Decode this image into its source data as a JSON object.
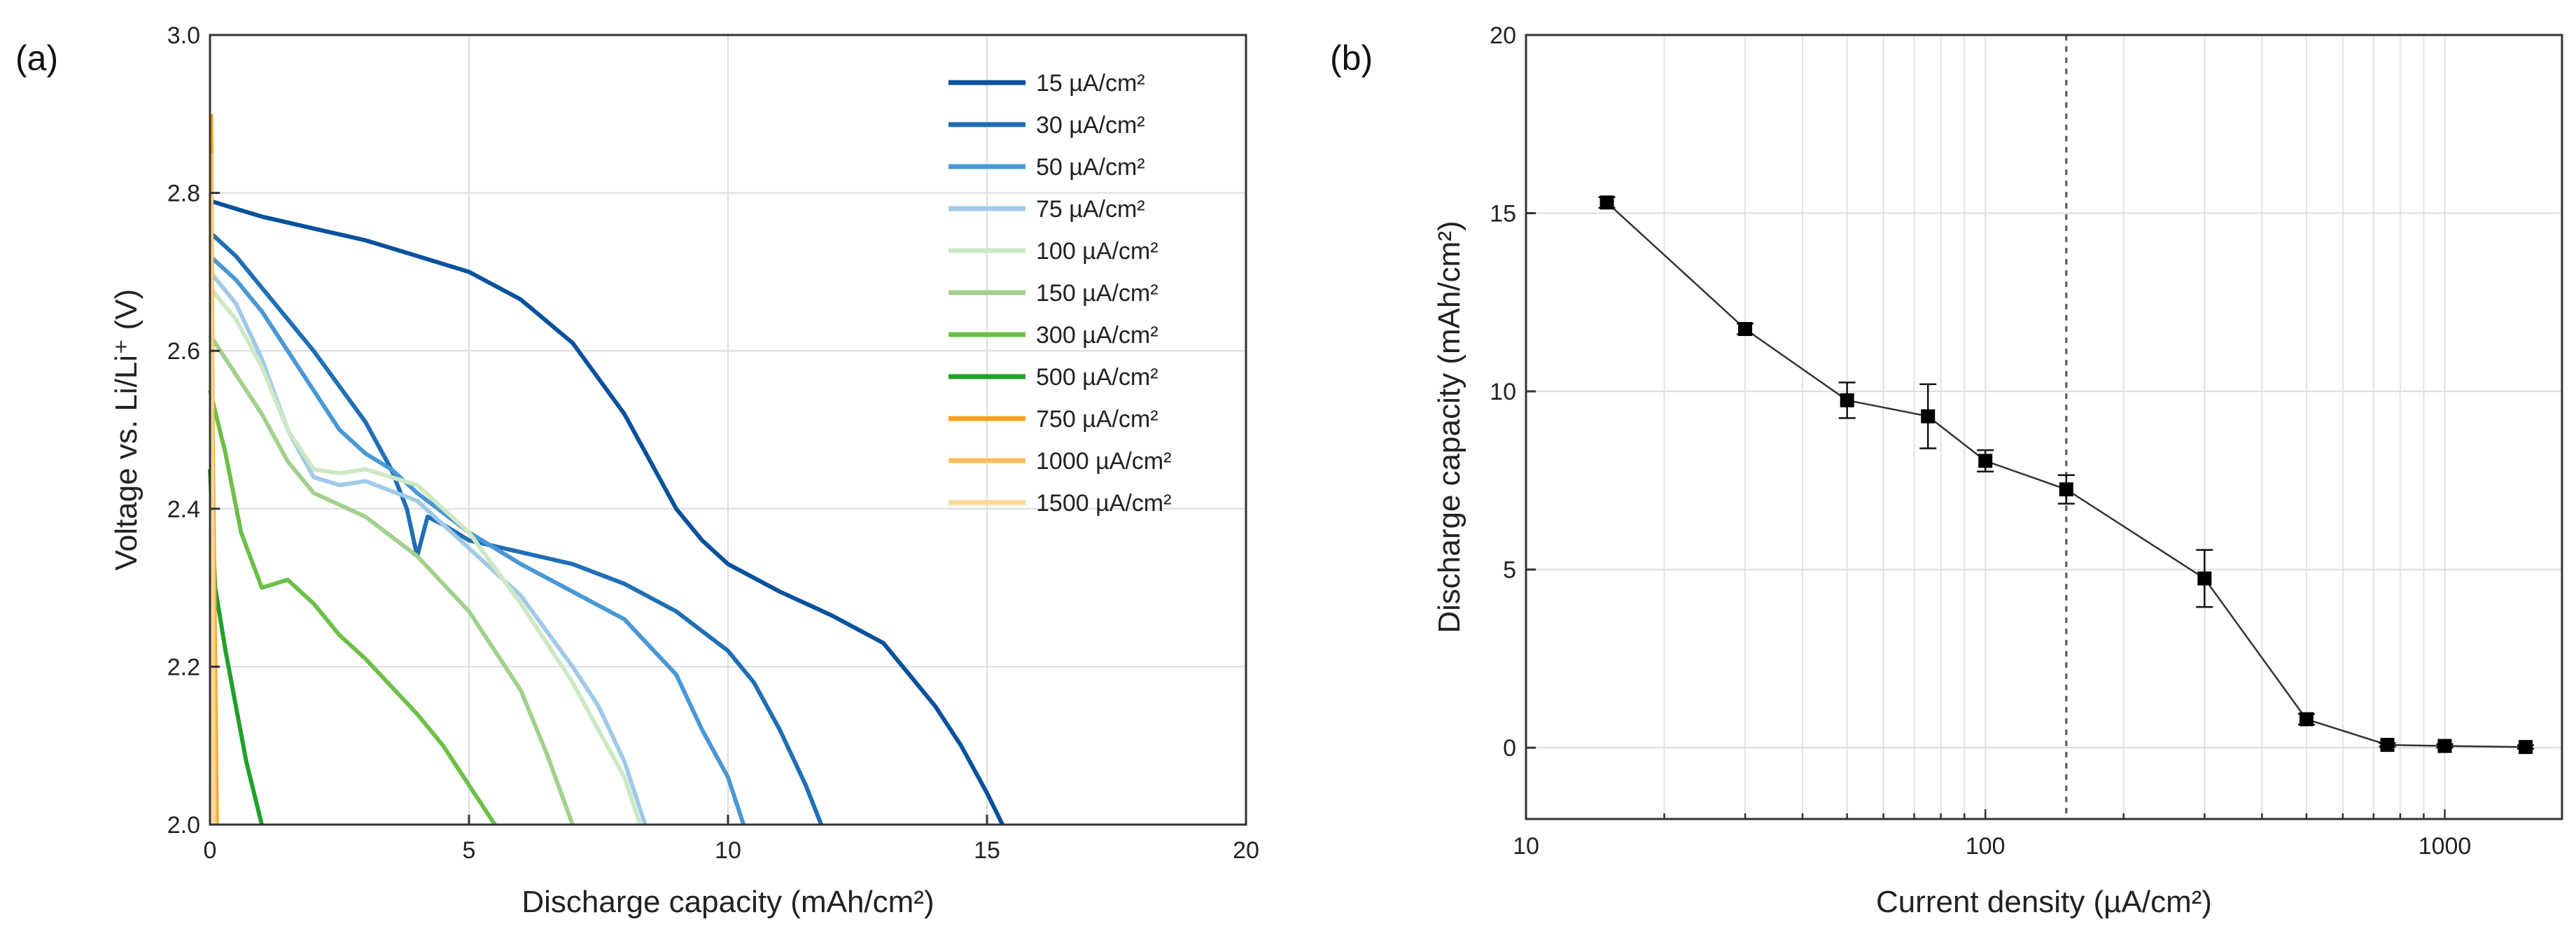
{
  "chart_data": [
    {
      "panel": "(a)",
      "type": "line",
      "xlabel": "Discharge capacity (mAh/cm²)",
      "ylabel": "Voltage vs. Li/Li⁺ (V)",
      "xlim": [
        0,
        20
      ],
      "ylim": [
        2.0,
        3.0
      ],
      "xticks": [
        0,
        5,
        10,
        15,
        20
      ],
      "yticks": [
        2.0,
        2.2,
        2.4,
        2.6,
        2.8,
        3.0
      ],
      "grid": true,
      "legend_position": "top-right",
      "series": [
        {
          "name": "15 µA/cm²",
          "color": "#08519c",
          "x": [
            0,
            0.5,
            1,
            2,
            3,
            4,
            5,
            6,
            7,
            8,
            8.5,
            9,
            9.5,
            10,
            11,
            12,
            13,
            13.5,
            14,
            14.5,
            15,
            15.3
          ],
          "y": [
            2.79,
            2.78,
            2.77,
            2.755,
            2.74,
            2.72,
            2.7,
            2.665,
            2.61,
            2.52,
            2.46,
            2.4,
            2.36,
            2.33,
            2.295,
            2.265,
            2.23,
            2.19,
            2.15,
            2.1,
            2.04,
            2.0
          ]
        },
        {
          "name": "30 µA/cm²",
          "color": "#1f6fb4",
          "x": [
            0,
            0.5,
            1,
            2,
            3,
            3.5,
            3.8,
            4,
            4.2,
            4.5,
            5,
            6,
            7,
            8,
            9,
            10,
            10.5,
            11,
            11.5,
            11.8
          ],
          "y": [
            2.75,
            2.72,
            2.68,
            2.6,
            2.51,
            2.45,
            2.4,
            2.34,
            2.39,
            2.38,
            2.36,
            2.345,
            2.33,
            2.305,
            2.27,
            2.22,
            2.18,
            2.12,
            2.05,
            2.0
          ]
        },
        {
          "name": "50 µA/cm²",
          "color": "#4a98d4",
          "x": [
            0,
            0.5,
            1,
            1.5,
            2,
            2.5,
            3,
            3.5,
            4,
            5,
            6,
            7,
            8,
            9,
            9.5,
            10,
            10.3
          ],
          "y": [
            2.72,
            2.69,
            2.65,
            2.6,
            2.55,
            2.5,
            2.47,
            2.45,
            2.42,
            2.37,
            2.33,
            2.295,
            2.26,
            2.19,
            2.12,
            2.06,
            2.0
          ]
        },
        {
          "name": "75 µA/cm²",
          "color": "#9fcae8",
          "x": [
            0,
            0.5,
            1,
            1.5,
            2,
            2.5,
            3,
            4,
            5,
            6,
            7,
            7.5,
            8,
            8.4
          ],
          "y": [
            2.7,
            2.66,
            2.59,
            2.5,
            2.44,
            2.43,
            2.435,
            2.41,
            2.35,
            2.29,
            2.2,
            2.15,
            2.08,
            2.0
          ]
        },
        {
          "name": "100 µA/cm²",
          "color": "#cde8c3",
          "x": [
            0,
            0.5,
            1,
            1.5,
            2,
            2.5,
            3,
            4,
            5,
            6,
            7,
            8,
            8.3
          ],
          "y": [
            2.68,
            2.64,
            2.58,
            2.5,
            2.45,
            2.445,
            2.45,
            2.43,
            2.37,
            2.28,
            2.18,
            2.06,
            2.0
          ]
        },
        {
          "name": "150 µA/cm²",
          "color": "#a3d08e",
          "x": [
            0,
            0.5,
            1,
            1.5,
            2,
            3,
            4,
            5,
            6,
            6.5,
            7
          ],
          "y": [
            2.62,
            2.57,
            2.52,
            2.46,
            2.42,
            2.39,
            2.34,
            2.27,
            2.17,
            2.09,
            2.0
          ]
        },
        {
          "name": "300 µA/cm²",
          "color": "#6cc04a",
          "x": [
            0,
            0.3,
            0.6,
            1,
            1.5,
            2,
            2.5,
            3,
            4,
            4.5,
            5,
            5.5
          ],
          "y": [
            2.55,
            2.47,
            2.37,
            2.3,
            2.31,
            2.28,
            2.24,
            2.21,
            2.14,
            2.1,
            2.05,
            2.0
          ]
        },
        {
          "name": "500 µA/cm²",
          "color": "#22a02c",
          "x": [
            0,
            0.1,
            0.3,
            0.5,
            0.7,
            1.0
          ],
          "y": [
            2.45,
            2.3,
            2.22,
            2.15,
            2.08,
            2.0
          ]
        },
        {
          "name": "750 µA/cm²",
          "color": "#f6a21e",
          "x": [
            0.02,
            0.05,
            0.1,
            0.13
          ],
          "y": [
            2.9,
            2.5,
            2.2,
            2.0
          ]
        },
        {
          "name": "1000 µA/cm²",
          "color": "#f9be5c",
          "x": [
            0.02,
            0.04,
            0.08,
            0.1
          ],
          "y": [
            2.85,
            2.5,
            2.2,
            2.0
          ]
        },
        {
          "name": "1500 µA/cm²",
          "color": "#fbd898",
          "x": [
            0.01,
            0.03,
            0.05,
            0.07
          ],
          "y": [
            2.8,
            2.5,
            2.2,
            2.0
          ]
        }
      ]
    },
    {
      "panel": "(b)",
      "type": "scatter",
      "xscale": "log",
      "xlabel": "Current density (µA/cm²)",
      "ylabel": "Discharge capacity (mAh/cm²)",
      "xlim": [
        10,
        1800
      ],
      "ylim": [
        -2,
        20
      ],
      "xticks": [
        10,
        100,
        1000
      ],
      "yticks": [
        0,
        5,
        10,
        15,
        20
      ],
      "grid": true,
      "reference_line_x": 150,
      "x": [
        15,
        30,
        50,
        75,
        100,
        150,
        300,
        500,
        750,
        1000,
        1500
      ],
      "y": [
        15.3,
        11.75,
        9.75,
        9.3,
        8.05,
        7.25,
        4.75,
        0.8,
        0.08,
        0.05,
        0.02
      ],
      "err": [
        0.15,
        0.15,
        0.5,
        0.9,
        0.3,
        0.4,
        0.8,
        0.15,
        0.05,
        0.05,
        0.05
      ],
      "marker_color": "#000000"
    }
  ]
}
